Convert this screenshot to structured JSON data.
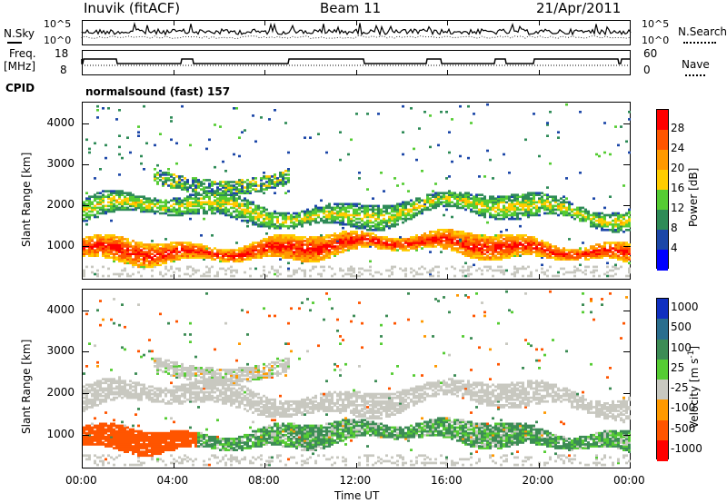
{
  "header": {
    "station": "Inuvik (fitACF)",
    "beam": "Beam 11",
    "date": "21/Apr/2011"
  },
  "left_labels": {
    "nsky": "N.Sky",
    "freq": "Freq.",
    "mhz": "[MHz]",
    "cpid": "CPID"
  },
  "right_labels": {
    "nsearch": "N.Search",
    "nave": "Nave"
  },
  "noise_panel": {
    "left_ticks": [
      "10^5",
      "10^0"
    ],
    "right_ticks": [
      "10^5",
      "10^0"
    ]
  },
  "freq_panel": {
    "left_ticks": [
      "18",
      "8"
    ],
    "right_ticks": [
      "60",
      "0"
    ]
  },
  "cpid_text": "normalsound (fast) 157",
  "colors": {
    "power": [
      "#0000ff",
      "#1c47a8",
      "#2e8b57",
      "#55cc33",
      "#ffcc00",
      "#ff9900",
      "#ff5500",
      "#ff0000"
    ],
    "velocity": [
      "#ff0000",
      "#ff5500",
      "#ff9900",
      "#c8c8c0",
      "#55cc33",
      "#3c8c55",
      "#2a6e8e",
      "#1030c0"
    ],
    "grey_scatter": "#c8c8c0"
  },
  "chart_data": [
    {
      "type": "heatmap",
      "title": "Power",
      "ylabel": "Slant Range [km]",
      "xlabel": "",
      "x_ticks": [
        "00:00",
        "04:00",
        "08:00",
        "12:00",
        "16:00",
        "20:00",
        "00:00"
      ],
      "x_range_hours": [
        0,
        24
      ],
      "y_ticks": [
        1000,
        2000,
        3000,
        4000
      ],
      "ylim": [
        200,
        4500
      ],
      "colorbar": {
        "label": "Power [dB]",
        "ticks": [
          "28",
          "24",
          "20",
          "16",
          "12",
          "8",
          "4"
        ],
        "range": [
          0,
          32
        ]
      },
      "bands": [
        {
          "hours": [
            0,
            24
          ],
          "range_km": [
            700,
            1200
          ],
          "power_db": 22
        },
        {
          "hours": [
            0,
            24
          ],
          "range_km": [
            1500,
            2200
          ],
          "power_db": 13
        },
        {
          "hours": [
            3,
            8
          ],
          "range_km": [
            2300,
            3100
          ],
          "power_db": 10
        }
      ]
    },
    {
      "type": "heatmap",
      "title": "Velocity",
      "ylabel": "Slant Range [km]",
      "xlabel": "Time UT",
      "x_ticks": [
        "00:00",
        "04:00",
        "08:00",
        "12:00",
        "16:00",
        "20:00",
        "00:00"
      ],
      "x_range_hours": [
        0,
        24
      ],
      "y_ticks": [
        1000,
        2000,
        3000,
        4000
      ],
      "ylim": [
        200,
        4500
      ],
      "colorbar": {
        "label": "Velocity [m s-1]",
        "label_main": "Velocity",
        "label_unit": "[m s",
        "label_exp": "-1",
        "label_close": "]",
        "ticks": [
          "1000",
          "500",
          "100",
          "25",
          "-25",
          "-100",
          "-500",
          "-1000"
        ]
      },
      "bands": [
        {
          "hours": [
            0,
            24
          ],
          "range_km": [
            700,
            1200
          ],
          "velocity_ms": 100
        },
        {
          "hours": [
            0,
            24
          ],
          "range_km": [
            1500,
            2200
          ],
          "velocity_ms": 0
        },
        {
          "hours": [
            0,
            4
          ],
          "range_km": [
            700,
            1100
          ],
          "velocity_ms": -300
        }
      ]
    }
  ]
}
